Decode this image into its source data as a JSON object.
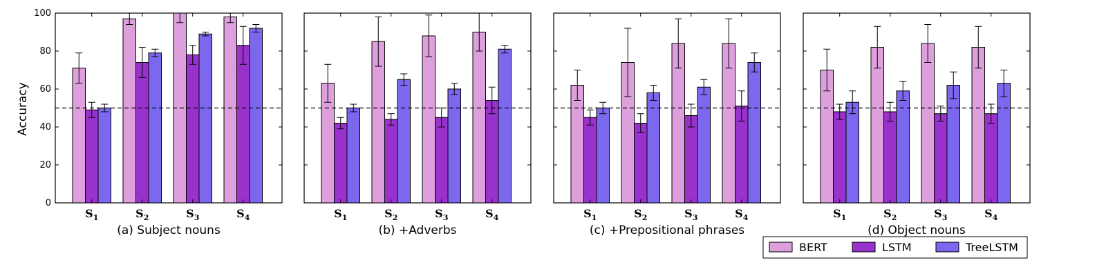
{
  "chart_data": {
    "type": "bar",
    "ylabel": "Accuracy",
    "ylim": [
      0,
      100
    ],
    "yticks": [
      0,
      20,
      40,
      60,
      80,
      100
    ],
    "reference_line": 50,
    "categories": [
      {
        "base": "S",
        "sub": "1"
      },
      {
        "base": "S",
        "sub": "2"
      },
      {
        "base": "S",
        "sub": "3"
      },
      {
        "base": "S",
        "sub": "4"
      }
    ],
    "legend": [
      {
        "name": "BERT",
        "color": "#dda0dd"
      },
      {
        "name": "LSTM",
        "color": "#9932cc"
      },
      {
        "name": "TreeLSTM",
        "color": "#7b68ee"
      }
    ],
    "panels": [
      {
        "caption": "(a) Subject nouns",
        "series": [
          {
            "name": "BERT",
            "values": [
              71,
              97,
              100,
              98
            ],
            "errors": [
              8,
              3,
              5,
              3
            ]
          },
          {
            "name": "LSTM",
            "values": [
              49,
              74,
              78,
              83
            ],
            "errors": [
              4,
              8,
              5,
              10
            ]
          },
          {
            "name": "TreeLSTM",
            "values": [
              50,
              79,
              89,
              92
            ],
            "errors": [
              2,
              2,
              1,
              2
            ]
          }
        ]
      },
      {
        "caption": "(b) +Adverbs",
        "series": [
          {
            "name": "BERT",
            "values": [
              63,
              85,
              88,
              90
            ],
            "errors": [
              10,
              13,
              11,
              10
            ]
          },
          {
            "name": "LSTM",
            "values": [
              42,
              44,
              45,
              54
            ],
            "errors": [
              3,
              3,
              5,
              7
            ]
          },
          {
            "name": "TreeLSTM",
            "values": [
              50,
              65,
              60,
              81
            ],
            "errors": [
              2,
              3,
              3,
              2
            ]
          }
        ]
      },
      {
        "caption": "(c) +Prepositional phrases",
        "series": [
          {
            "name": "BERT",
            "values": [
              62,
              74,
              84,
              84
            ],
            "errors": [
              8,
              18,
              13,
              13
            ]
          },
          {
            "name": "LSTM",
            "values": [
              45,
              42,
              46,
              51
            ],
            "errors": [
              4,
              5,
              6,
              8
            ]
          },
          {
            "name": "TreeLSTM",
            "values": [
              50,
              58,
              61,
              74
            ],
            "errors": [
              3,
              4,
              4,
              5
            ]
          }
        ]
      },
      {
        "caption": "(d) Object nouns",
        "series": [
          {
            "name": "BERT",
            "values": [
              70,
              82,
              84,
              82
            ],
            "errors": [
              11,
              11,
              10,
              11
            ]
          },
          {
            "name": "LSTM",
            "values": [
              48,
              48,
              47,
              47
            ],
            "errors": [
              4,
              5,
              4,
              5
            ]
          },
          {
            "name": "TreeLSTM",
            "values": [
              53,
              59,
              62,
              63
            ],
            "errors": [
              6,
              5,
              7,
              7
            ]
          }
        ]
      }
    ]
  }
}
